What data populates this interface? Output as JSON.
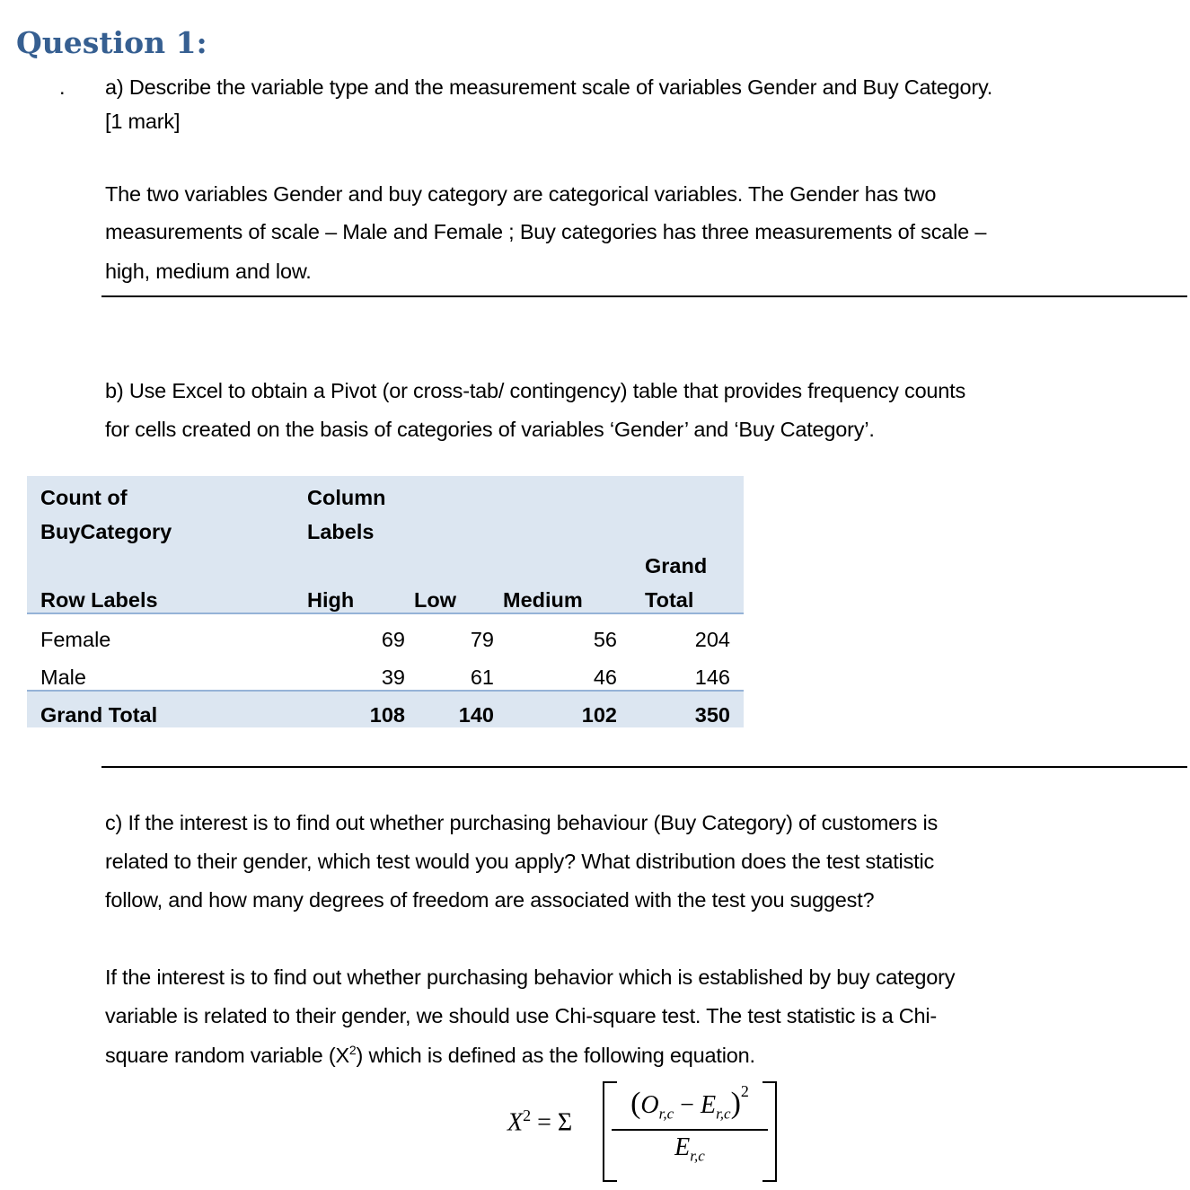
{
  "title": "Question 1:",
  "bullet": ".",
  "part_a": {
    "question_lines": [
      "a) Describe the variable type and the measurement scale of variables Gender and Buy Category.",
      "[1 mark]"
    ],
    "answer_lines": [
      "The two variables Gender and buy category are categorical variables. The Gender has two",
      "measurements of scale – Male and Female ; Buy categories has three measurements of scale –",
      "high, medium and low."
    ]
  },
  "part_b": {
    "question_lines": [
      "b) Use Excel to obtain a Pivot (or cross-tab/ contingency) table that provides frequency counts",
      "for cells created on the basis of categories of variables ‘Gender’ and ‘Buy Category’."
    ],
    "table": {
      "count_of_1": "Count of",
      "count_of_2": "BuyCategory",
      "column_labels_1": "Column",
      "column_labels_2": "Labels",
      "row_labels": "Row Labels",
      "headers": [
        "High",
        "Low",
        "Medium"
      ],
      "grand_total_1": "Grand",
      "grand_total_2": "Total",
      "rows": [
        {
          "label": "Female",
          "values": [
            "69",
            "79",
            "56",
            "204"
          ]
        },
        {
          "label": "Male",
          "values": [
            "39",
            "61",
            "46",
            "146"
          ]
        }
      ],
      "total": {
        "label": "Grand Total",
        "values": [
          "108",
          "140",
          "102",
          "350"
        ]
      }
    }
  },
  "part_c": {
    "question_lines": [
      "c) If the interest is to find out whether purchasing behaviour (Buy Category) of customers is",
      "related to their gender, which test would you apply? What distribution does the test statistic",
      "follow, and how many degrees of freedom are associated with the test you suggest?"
    ],
    "answer_lines": [
      "If the interest is to find out whether purchasing behavior which is established by buy category",
      "variable is related to their gender, we should use Chi-square test.  The test statistic is a Chi-"
    ],
    "answer_last_pre": "square random variable (X",
    "answer_last_sup": "2",
    "answer_last_post": ") which is defined as the following equation.",
    "formula": {
      "lhs": "X",
      "lhs_exp": "2",
      "eq": "= Σ",
      "observed": "O",
      "expected": "E",
      "sub": "r,c",
      "minus": "−",
      "exp": "2"
    }
  }
}
